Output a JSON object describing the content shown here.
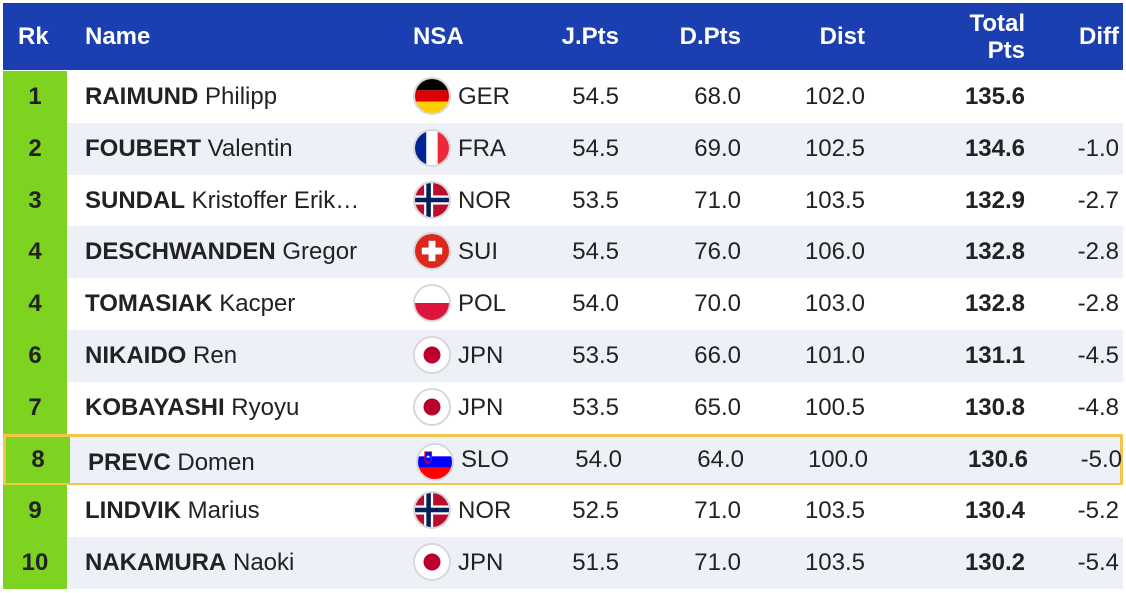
{
  "headers": {
    "rk": "Rk",
    "name": "Name",
    "nsa": "NSA",
    "jpts": "J.Pts",
    "dpts": "D.Pts",
    "dist": "Dist",
    "total_line1": "Total",
    "total_line2": "Pts",
    "diff": "Diff"
  },
  "colors": {
    "header_bg": "#1b3fb0",
    "rank_bg": "#7ed321",
    "highlight_border": "#f2c64d",
    "row_alt_bg": "#eef0f7"
  },
  "rows": [
    {
      "rank": "1",
      "last": "RAIMUND",
      "first": "Philipp",
      "nsa": "GER",
      "flag": "germany-flag-icon",
      "jpts": "54.5",
      "dpts": "68.0",
      "dist": "102.0",
      "total": "135.6",
      "diff": ""
    },
    {
      "rank": "2",
      "last": "FOUBERT",
      "first": "Valentin",
      "nsa": "FRA",
      "flag": "france-flag-icon",
      "jpts": "54.5",
      "dpts": "69.0",
      "dist": "102.5",
      "total": "134.6",
      "diff": "-1.0"
    },
    {
      "rank": "3",
      "last": "SUNDAL",
      "first": "Kristoffer Erik…",
      "nsa": "NOR",
      "flag": "norway-flag-icon",
      "jpts": "53.5",
      "dpts": "71.0",
      "dist": "103.5",
      "total": "132.9",
      "diff": "-2.7"
    },
    {
      "rank": "4",
      "last": "DESCHWANDEN",
      "first": "Gregor",
      "nsa": "SUI",
      "flag": "switzerland-flag-icon",
      "jpts": "54.5",
      "dpts": "76.0",
      "dist": "106.0",
      "total": "132.8",
      "diff": "-2.8"
    },
    {
      "rank": "4",
      "last": "TOMASIAK",
      "first": "Kacper",
      "nsa": "POL",
      "flag": "poland-flag-icon",
      "jpts": "54.0",
      "dpts": "70.0",
      "dist": "103.0",
      "total": "132.8",
      "diff": "-2.8"
    },
    {
      "rank": "6",
      "last": "NIKAIDO",
      "first": "Ren",
      "nsa": "JPN",
      "flag": "japan-flag-icon",
      "jpts": "53.5",
      "dpts": "66.0",
      "dist": "101.0",
      "total": "131.1",
      "diff": "-4.5"
    },
    {
      "rank": "7",
      "last": "KOBAYASHI",
      "first": "Ryoyu",
      "nsa": "JPN",
      "flag": "japan-flag-icon",
      "jpts": "53.5",
      "dpts": "65.0",
      "dist": "100.5",
      "total": "130.8",
      "diff": "-4.8"
    },
    {
      "rank": "8",
      "last": "PREVC",
      "first": "Domen",
      "nsa": "SLO",
      "flag": "slovenia-flag-icon",
      "jpts": "54.0",
      "dpts": "64.0",
      "dist": "100.0",
      "total": "130.6",
      "diff": "-5.0",
      "highlighted": true
    },
    {
      "rank": "9",
      "last": "LINDVIK",
      "first": "Marius",
      "nsa": "NOR",
      "flag": "norway-flag-icon",
      "jpts": "52.5",
      "dpts": "71.0",
      "dist": "103.5",
      "total": "130.4",
      "diff": "-5.2"
    },
    {
      "rank": "10",
      "last": "NAKAMURA",
      "first": "Naoki",
      "nsa": "JPN",
      "flag": "japan-flag-icon",
      "jpts": "51.5",
      "dpts": "71.0",
      "dist": "103.5",
      "total": "130.2",
      "diff": "-5.4"
    }
  ]
}
